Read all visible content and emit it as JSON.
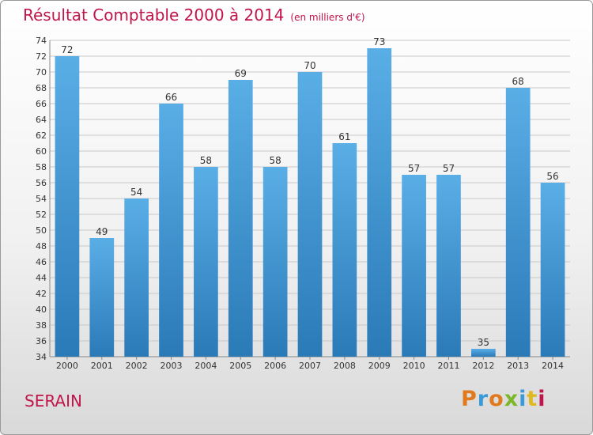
{
  "title": "Résultat Comptable 2000 à 2014",
  "subtitle": "(en milliers d'€)",
  "commune": "SERAIN",
  "logo": {
    "letters": [
      "P",
      "r",
      "o",
      "x",
      "i",
      "t",
      "i"
    ]
  },
  "colors": {
    "title": "#c0144a",
    "bar_top": "#5aaee6",
    "bar_bottom": "#2a7ab8",
    "logo": [
      "#e07a1f",
      "#3a9ad9",
      "#e07a1f",
      "#7ab82a",
      "#3a9ad9",
      "#e0b81f",
      "#c0144a"
    ]
  },
  "chart_data": {
    "type": "bar",
    "categories": [
      "2000",
      "2001",
      "2002",
      "2003",
      "2004",
      "2005",
      "2006",
      "2007",
      "2008",
      "2009",
      "2010",
      "2011",
      "2012",
      "2013",
      "2014"
    ],
    "values": [
      72,
      49,
      54,
      66,
      58,
      69,
      58,
      70,
      61,
      73,
      57,
      57,
      35,
      68,
      56
    ],
    "ylim": [
      34,
      74
    ],
    "yticks": [
      34,
      36,
      38,
      40,
      42,
      44,
      46,
      48,
      50,
      52,
      54,
      56,
      58,
      60,
      62,
      64,
      66,
      68,
      70,
      72,
      74
    ],
    "grid": true,
    "xlabel": "",
    "ylabel": ""
  }
}
